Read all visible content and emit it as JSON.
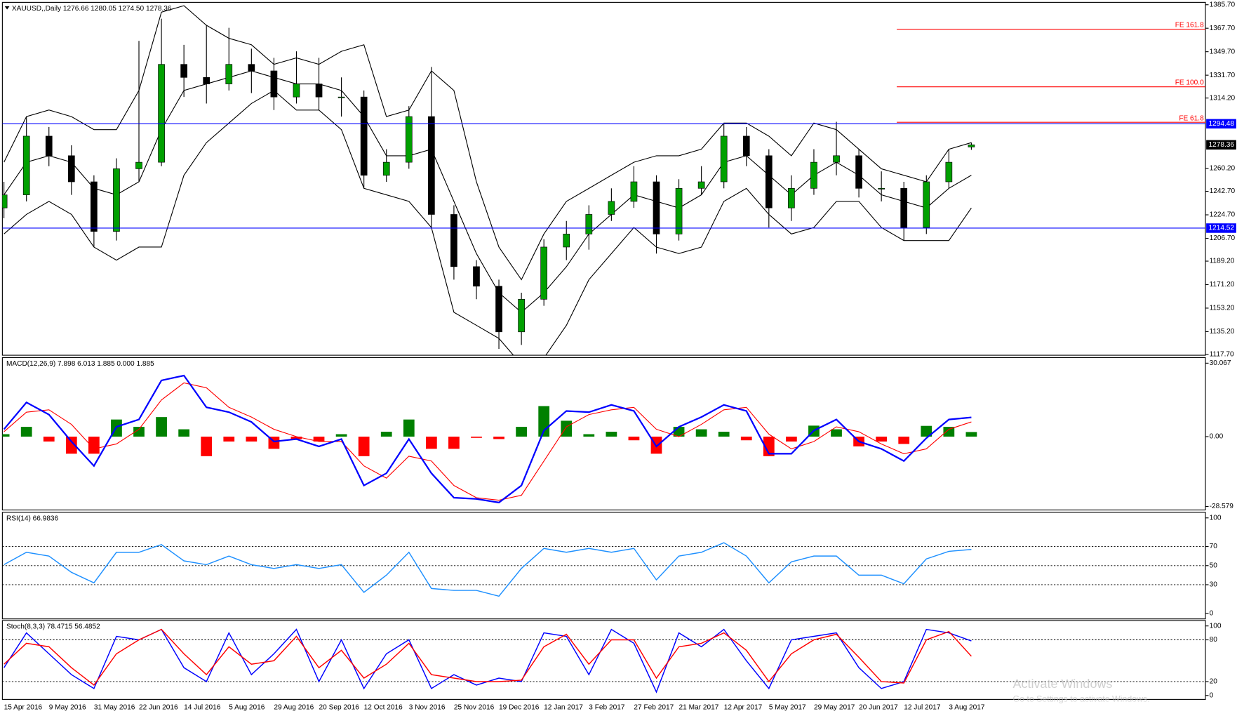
{
  "chart_data": [
    {
      "type": "candlestick",
      "title": "XAUUSD,,Daily  1276.66 1280.05 1274.50 1278.36",
      "categories": [
        "15 Apr 2016",
        null,
        "9 May 2016",
        null,
        "31 May 2016",
        null,
        "22 Jun 2016",
        null,
        "14 Jul 2016",
        null,
        "5 Aug 2016",
        null,
        "29 Aug 2016",
        null,
        "20 Sep 2016",
        null,
        "12 Oct 2016",
        null,
        "3 Nov 2016",
        null,
        "25 Nov 2016",
        null,
        "19 Dec 2016",
        null,
        "12 Jan 2017",
        null,
        "3 Feb 2017",
        null,
        "27 Feb 2017",
        null,
        "21 Mar 2017",
        null,
        "12 Apr 2017",
        null,
        "5 May 2017",
        null,
        "29 May 2017",
        null,
        "20 Jun 2017",
        null,
        "12 Jul 2017",
        null,
        "3 Aug 2017",
        null
      ],
      "open": [
        1230,
        1240,
        1285,
        1270,
        1250,
        1212,
        1260,
        1265,
        1340,
        1330,
        1325,
        1340,
        1335,
        1315,
        1325,
        1315,
        1315,
        1255,
        1265,
        1300,
        1225,
        1185,
        1170,
        1135,
        1160,
        1200,
        1210,
        1225,
        1235,
        1250,
        1210,
        1245,
        1250,
        1285,
        1270,
        1230,
        1245,
        1265,
        1270,
        1245,
        1245,
        1215,
        1250,
        1276.66
      ],
      "high": [
        1250,
        1300,
        1292,
        1278,
        1255,
        1268,
        1358,
        1375,
        1355,
        1370,
        1368,
        1352,
        1345,
        1350,
        1345,
        1330,
        1320,
        1275,
        1308,
        1338,
        1232,
        1190,
        1175,
        1165,
        1206,
        1220,
        1232,
        1245,
        1262,
        1255,
        1252,
        1262,
        1295,
        1292,
        1275,
        1255,
        1275,
        1296,
        1275,
        1258,
        1250,
        1255,
        1275,
        1280.05
      ],
      "low": [
        1222,
        1235,
        1262,
        1240,
        1200,
        1205,
        1250,
        1262,
        1315,
        1310,
        1320,
        1318,
        1305,
        1310,
        1305,
        1300,
        1245,
        1250,
        1260,
        1215,
        1175,
        1160,
        1122,
        1125,
        1155,
        1190,
        1198,
        1220,
        1230,
        1195,
        1205,
        1240,
        1245,
        1262,
        1215,
        1220,
        1240,
        1255,
        1238,
        1235,
        1205,
        1210,
        1245,
        1274.5
      ],
      "close": [
        1240,
        1285,
        1270,
        1250,
        1212,
        1260,
        1265,
        1340,
        1330,
        1325,
        1340,
        1335,
        1315,
        1325,
        1315,
        1315,
        1255,
        1265,
        1300,
        1225,
        1185,
        1170,
        1135,
        1160,
        1200,
        1210,
        1225,
        1235,
        1250,
        1210,
        1245,
        1250,
        1285,
        1270,
        1230,
        1245,
        1265,
        1270,
        1245,
        1245,
        1215,
        1250,
        1265,
        1278.36
      ],
      "up_color": "#00a000",
      "down_color": "#000000",
      "bands": {
        "color": "#000000",
        "upper": [
          1265,
          1300,
          1305,
          1300,
          1290,
          1290,
          1320,
          1380,
          1385,
          1370,
          1360,
          1355,
          1340,
          1345,
          1340,
          1350,
          1355,
          1300,
          1305,
          1335,
          1320,
          1250,
          1200,
          1175,
          1210,
          1235,
          1245,
          1255,
          1265,
          1270,
          1270,
          1275,
          1295,
          1295,
          1285,
          1270,
          1295,
          1290,
          1275,
          1260,
          1255,
          1250,
          1275,
          1280
        ],
        "middle": [
          1240,
          1265,
          1270,
          1265,
          1245,
          1240,
          1250,
          1290,
          1320,
          1325,
          1330,
          1335,
          1330,
          1325,
          1325,
          1320,
          1300,
          1270,
          1270,
          1275,
          1235,
          1195,
          1165,
          1150,
          1165,
          1185,
          1210,
          1225,
          1240,
          1235,
          1230,
          1240,
          1265,
          1270,
          1255,
          1240,
          1255,
          1265,
          1255,
          1240,
          1235,
          1230,
          1245,
          1255
        ],
        "lower": [
          1210,
          1225,
          1235,
          1225,
          1200,
          1190,
          1200,
          1200,
          1255,
          1280,
          1295,
          1310,
          1320,
          1305,
          1305,
          1290,
          1245,
          1240,
          1235,
          1215,
          1150,
          1140,
          1130,
          1110,
          1115,
          1140,
          1175,
          1195,
          1215,
          1200,
          1195,
          1200,
          1235,
          1245,
          1225,
          1210,
          1215,
          1235,
          1235,
          1215,
          1205,
          1205,
          1205,
          1230
        ]
      },
      "hlines": [
        {
          "value": 1294.48,
          "color": "#0000ff"
        },
        {
          "value": 1214.52,
          "color": "#0000ff"
        }
      ],
      "levels": [
        {
          "label": "FE 161.8",
          "value": 1367,
          "color": "#ff0000"
        },
        {
          "label": "FE 100.0",
          "value": 1322.8,
          "color": "#ff0000"
        },
        {
          "label": "FE 61.8",
          "value": 1295.6,
          "color": "#ff0000"
        }
      ],
      "ylim": [
        1117.7,
        1385.7
      ],
      "yticks": [
        {
          "value": 1385.7,
          "label": "1385.70"
        },
        {
          "value": 1367.7,
          "label": "1367.70"
        },
        {
          "value": 1349.7,
          "label": "1349.70"
        },
        {
          "value": 1331.7,
          "label": "1331.70"
        },
        {
          "value": 1314.2,
          "label": "1314.20"
        },
        {
          "value": 1260.2,
          "label": "1260.20"
        },
        {
          "value": 1242.7,
          "label": "1242.70"
        },
        {
          "value": 1224.7,
          "label": "1224.70"
        },
        {
          "value": 1206.7,
          "label": "1206.70"
        },
        {
          "value": 1189.2,
          "label": "1189.20"
        },
        {
          "value": 1171.2,
          "label": "1171.20"
        },
        {
          "value": 1153.2,
          "label": "1153.20"
        },
        {
          "value": 1135.2,
          "label": "1135.20"
        },
        {
          "value": 1117.7,
          "label": "1117.70"
        }
      ]
    },
    {
      "type": "macd",
      "title": "MACD(12,26,9) 7.898 6.013 1.885 0.000 1.885",
      "main": {
        "color": "#0000ff",
        "values": [
          3,
          14,
          9,
          -2,
          -12,
          4,
          7,
          23,
          25,
          12,
          10,
          6,
          -2,
          -1,
          -4,
          -1,
          -20,
          -15,
          -1,
          -15,
          -25,
          -25.5,
          -27,
          -20,
          2.5,
          10.5,
          10,
          13,
          10.5,
          -4,
          4,
          8,
          13,
          10.5,
          -7,
          -7,
          2.5,
          7,
          -2,
          -5,
          -10,
          -0.6,
          7,
          7.898
        ]
      },
      "signal": {
        "color": "#ff0000",
        "values": [
          2,
          10,
          11,
          5,
          -5,
          -3,
          3,
          15,
          22,
          20,
          12,
          8,
          3,
          0,
          -2,
          -2,
          -12,
          -17,
          -8,
          -10,
          -20,
          -25,
          -26,
          -24,
          -10,
          4,
          9,
          11,
          12,
          3,
          0,
          5,
          11,
          12,
          1,
          -5,
          -2,
          4,
          2,
          -3,
          -7,
          -5,
          3,
          6.013
        ]
      },
      "histogram": {
        "up_color": "#008000",
        "down_color": "#ff0000",
        "values": [
          1,
          4,
          -2,
          -7,
          -7,
          7,
          4,
          8,
          3,
          -8,
          -2,
          -2,
          -5,
          -1,
          -2,
          1,
          -8,
          2,
          7,
          -5,
          -5,
          -0.5,
          -1,
          4,
          12.5,
          6.5,
          1,
          2,
          -1.5,
          -7,
          4,
          3,
          2,
          -1.5,
          -8,
          -2,
          4.5,
          3,
          -4,
          -2,
          -3,
          4.4,
          4,
          1.885
        ]
      },
      "ylim": [
        -29.7,
        31.7
      ],
      "yticks": [
        30.067,
        {
          "value": 0,
          "label": "0.00"
        },
        -28.579
      ]
    },
    {
      "type": "line",
      "title": "RSI(14) 66.9836",
      "series": [
        {
          "color": "#1e90ff",
          "values": [
            51,
            64,
            60,
            43,
            32,
            64,
            64,
            72,
            55,
            51,
            60,
            51,
            47,
            51,
            47,
            51,
            22,
            40,
            64,
            26,
            24,
            24,
            18,
            47,
            68,
            64,
            68,
            64,
            68,
            35,
            60,
            64,
            74,
            60,
            32,
            54,
            60,
            60,
            40,
            40,
            31,
            57,
            65,
            66.9836
          ]
        }
      ],
      "levels": [
        70,
        50,
        30
      ],
      "ylim": [
        -5,
        105
      ],
      "yticks": [
        100,
        70,
        50,
        30,
        0
      ]
    },
    {
      "type": "line",
      "title": "Stoch(8,3,3) 78.4715 56.4852",
      "series": [
        {
          "color": "#0000ff",
          "values": [
            40,
            90,
            60,
            30,
            10,
            85,
            80,
            95,
            40,
            20,
            90,
            30,
            60,
            95,
            20,
            80,
            10,
            60,
            80,
            10,
            30,
            15,
            25,
            20,
            90,
            85,
            30,
            95,
            75,
            5,
            90,
            70,
            95,
            50,
            10,
            80,
            85,
            90,
            40,
            10,
            20,
            95,
            90,
            78.4715
          ]
        },
        {
          "color": "#ff0000",
          "values": [
            45,
            75,
            70,
            40,
            15,
            60,
            80,
            95,
            60,
            30,
            70,
            45,
            50,
            85,
            40,
            65,
            25,
            45,
            75,
            30,
            25,
            20,
            20,
            22,
            70,
            88,
            45,
            80,
            80,
            25,
            70,
            75,
            90,
            65,
            20,
            60,
            80,
            88,
            55,
            20,
            18,
            80,
            92,
            56.4852
          ]
        }
      ],
      "levels": [
        80,
        20
      ],
      "ylim": [
        -4.5,
        106.7
      ],
      "yticks": [
        100,
        80,
        20,
        0
      ]
    }
  ],
  "watermark": {
    "title": "Activate Windows",
    "subtitle": "Go to Settings to activate Windows."
  }
}
